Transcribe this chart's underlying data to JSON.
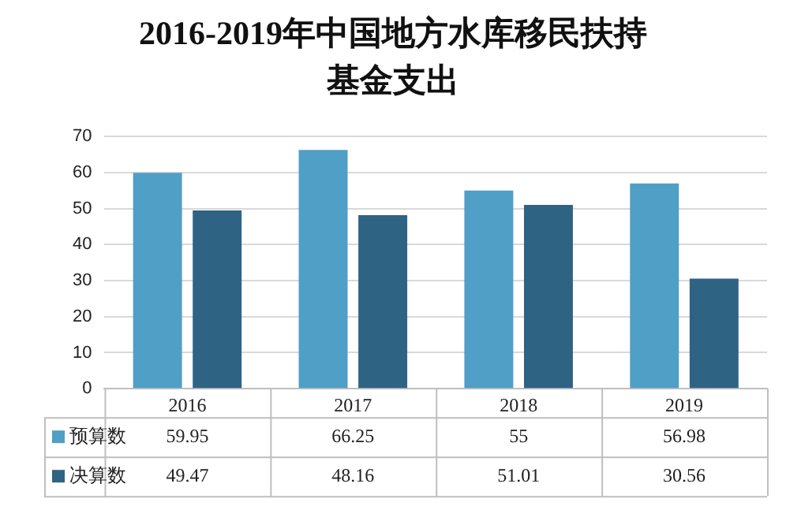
{
  "chart_data": {
    "type": "bar",
    "title": "2016-2019年中国地方水库移民扶持基金支出",
    "categories": [
      "2016",
      "2017",
      "2018",
      "2019"
    ],
    "series": [
      {
        "name": "预算数",
        "color": "#4f9fc6",
        "values": [
          59.95,
          66.25,
          55,
          56.98
        ]
      },
      {
        "name": "决算数",
        "color": "#2e6384",
        "values": [
          49.47,
          48.16,
          51.01,
          30.56
        ]
      }
    ],
    "ylim": [
      0,
      70
    ],
    "yticks": [
      0,
      10,
      20,
      30,
      40,
      50,
      60,
      70
    ],
    "grid": "y",
    "legend": "bottom",
    "data_labels": true
  }
}
